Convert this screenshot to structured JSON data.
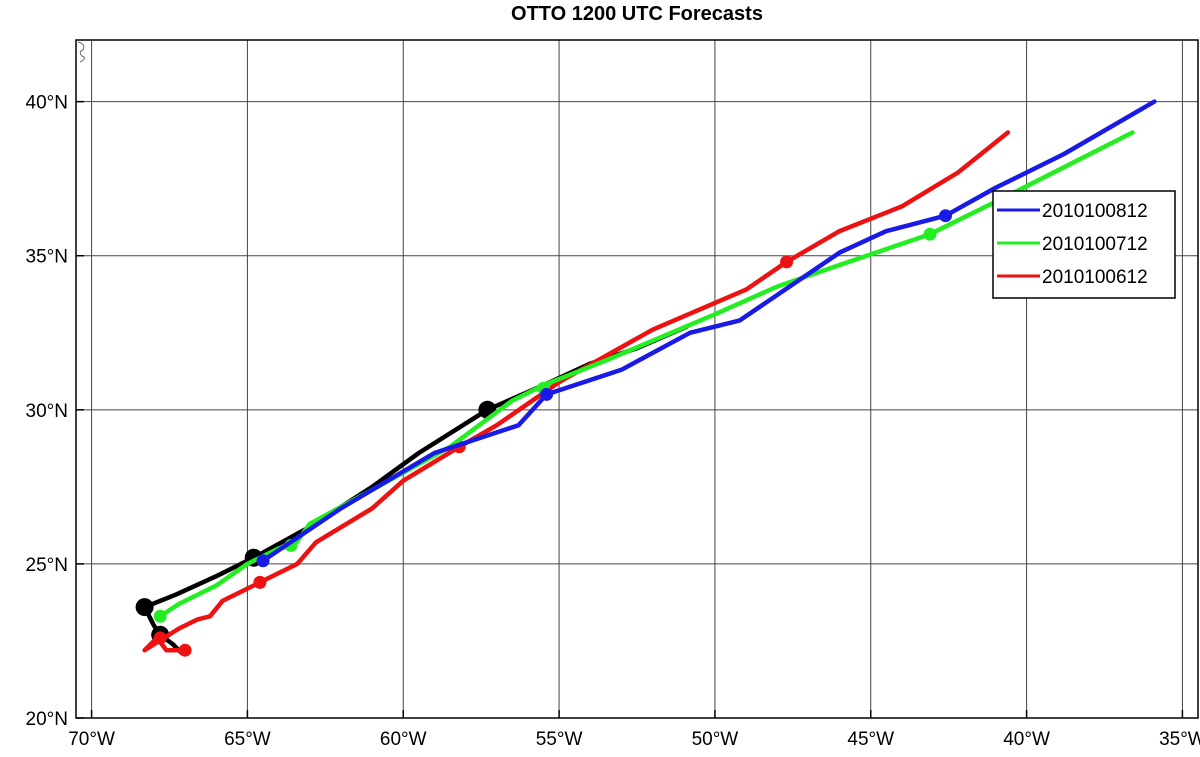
{
  "chart_data": {
    "type": "line",
    "title": "OTTO 1200 UTC Forecasts",
    "xlabel": "",
    "ylabel": "",
    "xlim": [
      -70.5,
      -34.5
    ],
    "ylim": [
      20,
      42
    ],
    "grid": true,
    "legend_position": "right",
    "x_ticks": [
      {
        "value": -70,
        "label": "70°W"
      },
      {
        "value": -65,
        "label": "65°W"
      },
      {
        "value": -60,
        "label": "60°W"
      },
      {
        "value": -55,
        "label": "55°W"
      },
      {
        "value": -50,
        "label": "50°W"
      },
      {
        "value": -45,
        "label": "45°W"
      },
      {
        "value": -40,
        "label": "40°W"
      },
      {
        "value": -35,
        "label": "35°W"
      }
    ],
    "y_ticks": [
      {
        "value": 20,
        "label": "20°N"
      },
      {
        "value": 25,
        "label": "25°N"
      },
      {
        "value": 30,
        "label": "30°N"
      },
      {
        "value": 35,
        "label": "35°N"
      },
      {
        "value": 40,
        "label": "40°N"
      }
    ],
    "series": [
      {
        "name": "",
        "color": "#000000",
        "points": [
          [
            -67.1,
            22.1
          ],
          [
            -67.4,
            22.4
          ],
          [
            -67.8,
            22.7
          ],
          [
            -68.0,
            23.0
          ],
          [
            -68.3,
            23.6
          ],
          [
            -67.3,
            24.0
          ],
          [
            -66.0,
            24.6
          ],
          [
            -64.8,
            25.2
          ],
          [
            -63.0,
            26.2
          ],
          [
            -61.0,
            27.5
          ],
          [
            -59.5,
            28.6
          ],
          [
            -57.3,
            30.0
          ],
          [
            -55.5,
            30.8
          ],
          [
            -54.0,
            31.5
          ],
          [
            -52.5,
            32.0
          ],
          [
            -50.9,
            32.7
          ]
        ],
        "markers": [
          [
            -68.3,
            23.6
          ],
          [
            -67.8,
            22.7
          ],
          [
            -64.8,
            25.2
          ],
          [
            -57.3,
            30.0
          ]
        ]
      },
      {
        "name": "2010100812",
        "color": "#1a1ae6",
        "points": [
          [
            -64.5,
            25.1
          ],
          [
            -62.0,
            26.8
          ],
          [
            -59.0,
            28.6
          ],
          [
            -56.3,
            29.5
          ],
          [
            -55.4,
            30.5
          ],
          [
            -53.0,
            31.3
          ],
          [
            -50.8,
            32.5
          ],
          [
            -49.2,
            32.9
          ],
          [
            -46.0,
            35.1
          ],
          [
            -44.5,
            35.8
          ],
          [
            -42.6,
            36.3
          ],
          [
            -41.0,
            37.2
          ],
          [
            -38.8,
            38.3
          ],
          [
            -35.9,
            40.0
          ]
        ],
        "markers": [
          [
            -64.5,
            25.1
          ],
          [
            -55.4,
            30.5
          ],
          [
            -42.6,
            36.3
          ]
        ]
      },
      {
        "name": "2010100712",
        "color": "#22ee22",
        "points": [
          [
            -67.8,
            23.3
          ],
          [
            -67.2,
            23.7
          ],
          [
            -66.0,
            24.3
          ],
          [
            -65.0,
            25.0
          ],
          [
            -64.0,
            25.5
          ],
          [
            -63.5,
            25.6
          ],
          [
            -63.0,
            26.3
          ],
          [
            -61.0,
            27.4
          ],
          [
            -58.5,
            28.8
          ],
          [
            -56.5,
            30.3
          ],
          [
            -55.5,
            30.8
          ],
          [
            -53.5,
            31.6
          ],
          [
            -50.0,
            33.1
          ],
          [
            -48.0,
            34.0
          ],
          [
            -46.0,
            34.7
          ],
          [
            -43.1,
            35.7
          ],
          [
            -40.5,
            37.0
          ],
          [
            -36.6,
            39.0
          ]
        ],
        "markers": [
          [
            -67.8,
            23.3
          ],
          [
            -63.6,
            25.6
          ],
          [
            -55.5,
            30.7
          ],
          [
            -43.1,
            35.7
          ]
        ]
      },
      {
        "name": "2010100612",
        "color": "#ee1111",
        "points": [
          [
            -67.0,
            22.2
          ],
          [
            -67.6,
            22.2
          ],
          [
            -67.9,
            22.6
          ],
          [
            -68.3,
            22.2
          ],
          [
            -67.2,
            22.9
          ],
          [
            -66.6,
            23.2
          ],
          [
            -66.2,
            23.3
          ],
          [
            -65.8,
            23.8
          ],
          [
            -64.6,
            24.4
          ],
          [
            -63.4,
            25.0
          ],
          [
            -62.8,
            25.7
          ],
          [
            -61.0,
            26.8
          ],
          [
            -60.0,
            27.7
          ],
          [
            -58.2,
            28.8
          ],
          [
            -57.0,
            29.5
          ],
          [
            -55.0,
            30.9
          ],
          [
            -52.0,
            32.6
          ],
          [
            -49.0,
            33.9
          ],
          [
            -47.7,
            34.8
          ],
          [
            -46.0,
            35.8
          ],
          [
            -44.0,
            36.6
          ],
          [
            -42.2,
            37.7
          ],
          [
            -40.6,
            39.0
          ]
        ],
        "markers": [
          [
            -67.0,
            22.2
          ],
          [
            -67.8,
            22.6
          ],
          [
            -64.6,
            24.4
          ],
          [
            -58.2,
            28.8
          ],
          [
            -47.7,
            34.8
          ]
        ]
      }
    ],
    "legend": [
      {
        "label": "2010100812",
        "color": "#1a1ae6"
      },
      {
        "label": "2010100712",
        "color": "#22ee22"
      },
      {
        "label": "2010100612",
        "color": "#ee1111"
      }
    ]
  }
}
